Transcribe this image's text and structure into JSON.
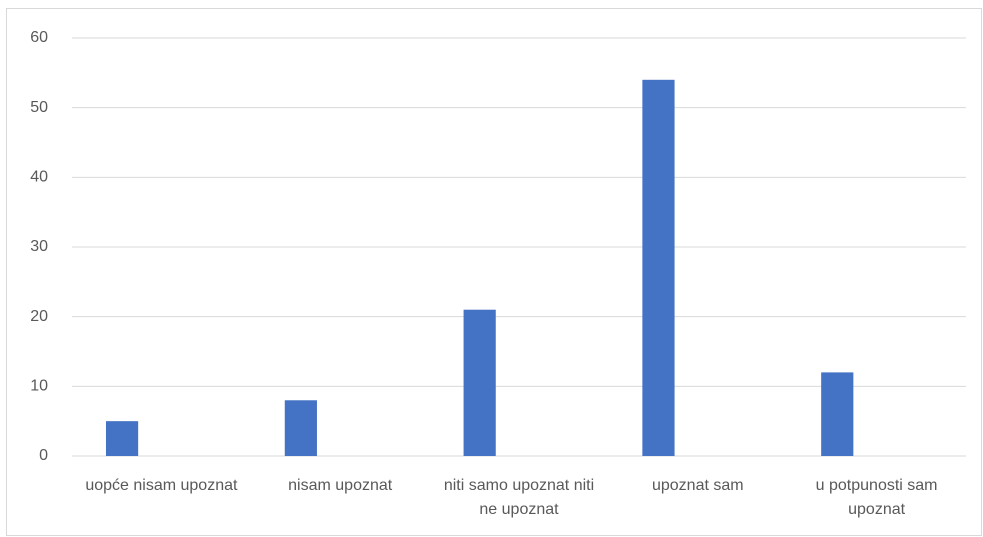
{
  "chart_data": {
    "type": "bar",
    "categories": [
      "uopće nisam upoznat",
      "nisam upoznat",
      "niti samo upoznat niti ne upoznat",
      "upoznat sam",
      "u potpunosti sam upoznat"
    ],
    "values": [
      5,
      8,
      21,
      54,
      12
    ],
    "color": "#4472c4",
    "ylim": [
      0,
      60
    ],
    "yticks": [
      0,
      10,
      20,
      30,
      40,
      50,
      60
    ],
    "grid": true
  }
}
